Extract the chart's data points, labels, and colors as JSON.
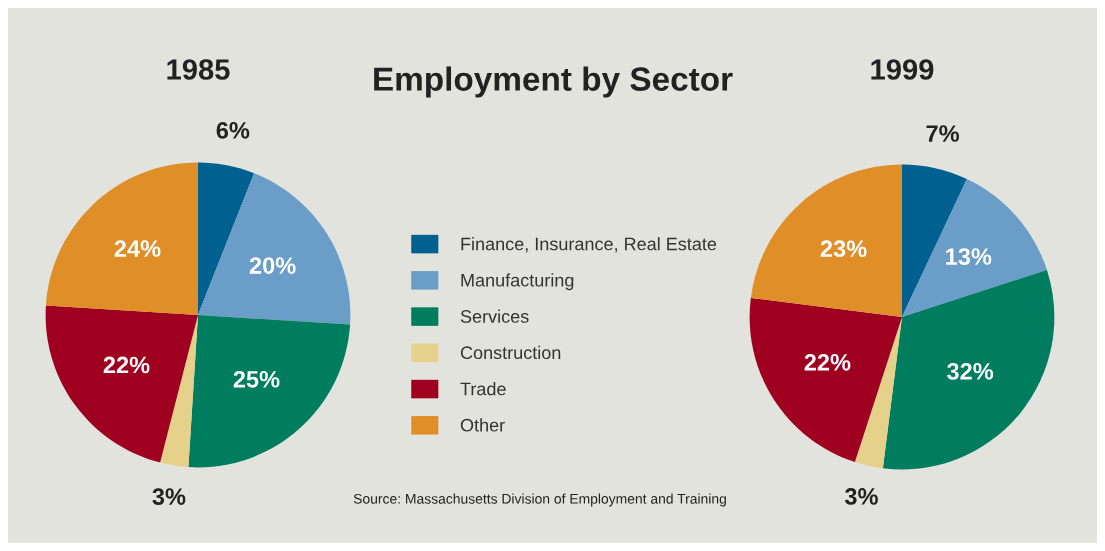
{
  "chart_data": [
    {
      "type": "pie",
      "title": "1985",
      "categories": [
        "Finance, Insurance, Real Estate",
        "Manufacturing",
        "Services",
        "Construction",
        "Trade",
        "Other"
      ],
      "values": [
        6,
        20,
        25,
        3,
        22,
        24
      ],
      "value_labels": [
        "6%",
        "20%",
        "25%",
        "3%",
        "22%",
        "24%"
      ],
      "colors": [
        "#00608f",
        "#6a9dc8",
        "#007c5e",
        "#e6d18a",
        "#a00020",
        "#e08f28"
      ],
      "legend": "right"
    },
    {
      "type": "other",
      "title": "Employment by Sector",
      "annotations": [
        "Source: Massachusetts Division of Employment and Training"
      ]
    },
    {
      "type": "pie",
      "title": "1999",
      "categories": [
        null,
        null,
        null,
        null,
        null,
        null
      ],
      "values": [
        7,
        13,
        32,
        3,
        22,
        23
      ],
      "value_labels": [
        "7%",
        "13%",
        "32%",
        "3%",
        "22%",
        "23%"
      ],
      "colors": [
        "#00608f",
        "#6a9dc8",
        "#007c5e",
        "#e6d18a",
        "#a00020",
        "#e08f28"
      ]
    }
  ]
}
